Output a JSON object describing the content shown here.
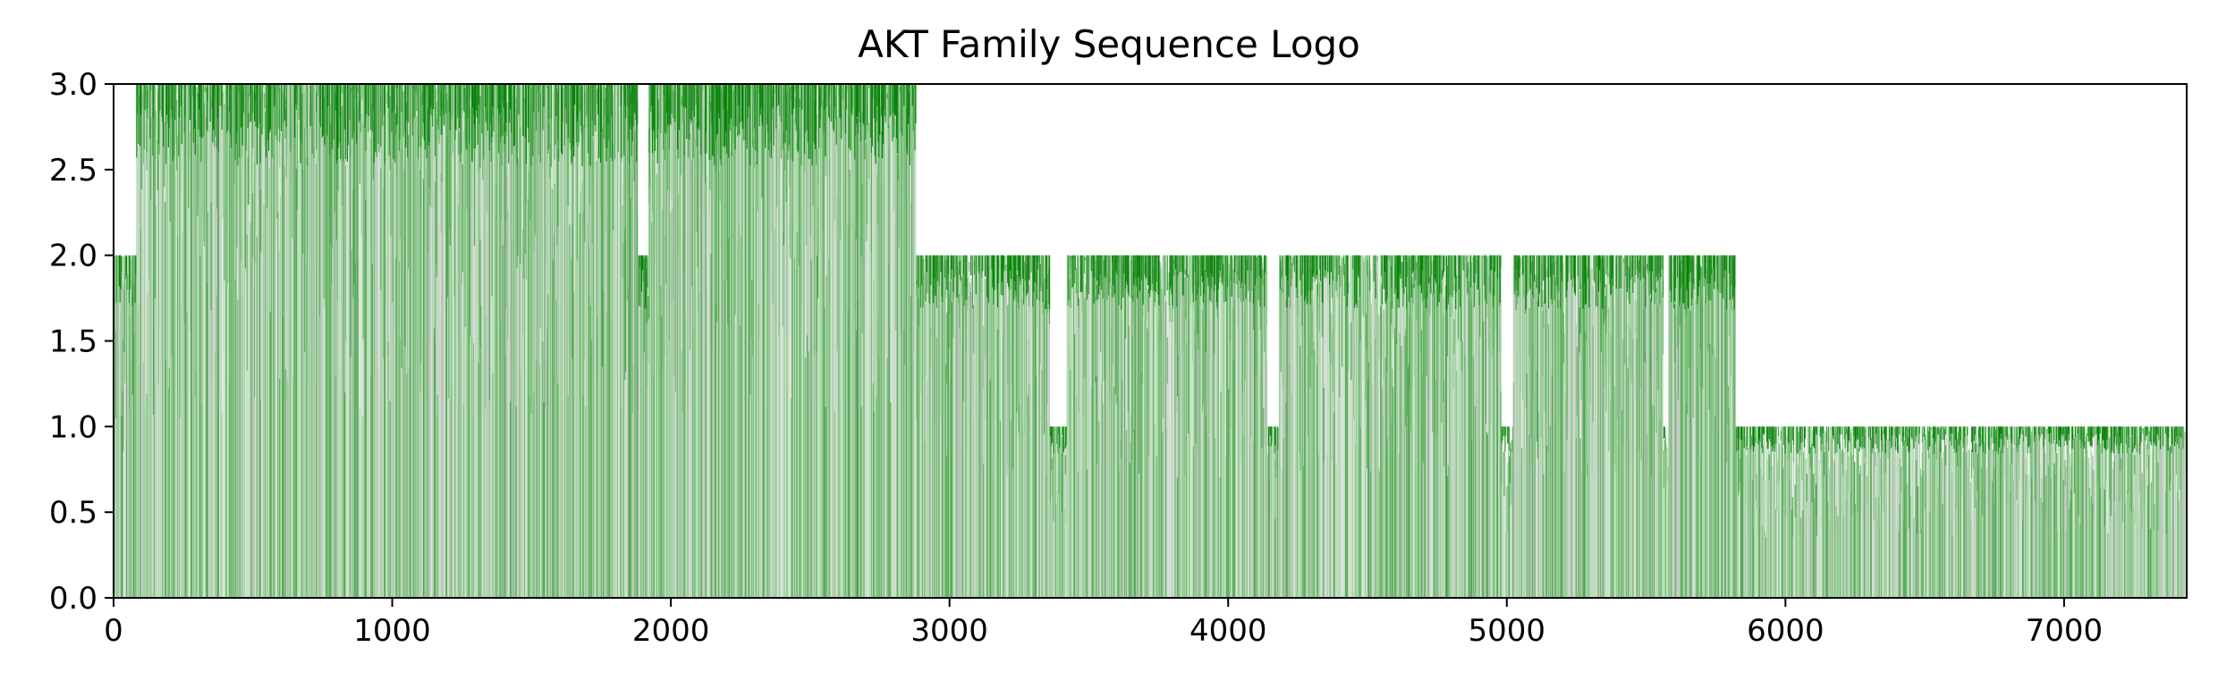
{
  "chart_data": {
    "type": "bar",
    "title": "AKT Family Sequence Logo",
    "xlabel": "",
    "ylabel": "",
    "xlim": [
      0,
      7440
    ],
    "ylim": [
      0,
      3.0
    ],
    "x_ticks": [
      0,
      1000,
      2000,
      3000,
      4000,
      5000,
      6000,
      7000
    ],
    "x_tick_labels": [
      "0",
      "1000",
      "2000",
      "3000",
      "4000",
      "5000",
      "6000",
      "7000"
    ],
    "y_ticks": [
      0.0,
      0.5,
      1.0,
      1.5,
      2.0,
      2.5,
      3.0
    ],
    "y_tick_labels": [
      "0.0",
      "0.5",
      "1.0",
      "1.5",
      "2.0",
      "2.5",
      "3.0"
    ],
    "grid": false,
    "colors": {
      "primary": "#008000",
      "secondary": "#555555"
    },
    "segments": [
      {
        "x_start": 0,
        "x_end": 80,
        "max_height": 2.0
      },
      {
        "x_start": 80,
        "x_end": 2880,
        "max_height": 3.0
      },
      {
        "x_start": 2880,
        "x_end": 5820,
        "max_height": 2.0
      },
      {
        "x_start": 5820,
        "x_end": 7440,
        "max_height": 1.0
      }
    ],
    "gaps": [
      {
        "x_start": 1880,
        "x_end": 1920,
        "max_height": 2.0
      },
      {
        "x_start": 3360,
        "x_end": 3420,
        "max_height": 1.0
      },
      {
        "x_start": 4140,
        "x_end": 4180,
        "max_height": 1.0
      },
      {
        "x_start": 4980,
        "x_end": 5020,
        "max_height": 1.0
      },
      {
        "x_start": 5560,
        "x_end": 5580,
        "max_height": 1.0
      }
    ]
  }
}
